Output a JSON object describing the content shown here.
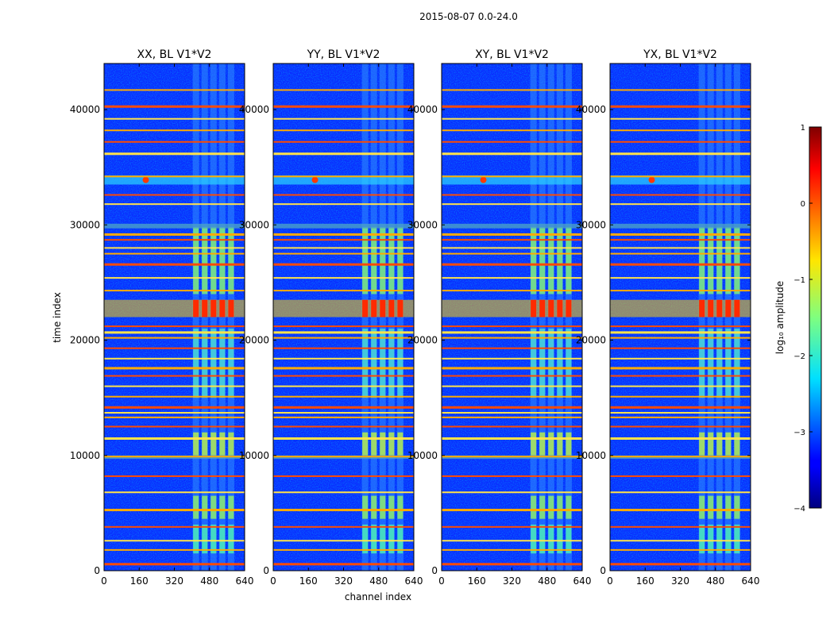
{
  "chart_data": {
    "type": "heatmap",
    "suptitle": "2015-08-07 0.0-24.0",
    "xlabel": "channel index",
    "ylabel": "time index",
    "xlim": [
      0,
      640
    ],
    "ylim": [
      0,
      44000
    ],
    "xticks": [
      0,
      160,
      320,
      480,
      640
    ],
    "yticks": [
      0,
      10000,
      20000,
      30000,
      40000
    ],
    "panels": [
      {
        "title": "XX, BL V1*V2"
      },
      {
        "title": "YY, BL V1*V2"
      },
      {
        "title": "XY, BL V1*V2"
      },
      {
        "title": "YX, BL V1*V2"
      }
    ],
    "colorbar": {
      "label": "log₁₀ amplitude",
      "min": -4,
      "max": 1,
      "ticks": [
        1,
        0,
        -1,
        -2,
        -3,
        -4
      ],
      "colormap": "jet"
    },
    "features": {
      "signal_channel_range": [
        400,
        600
      ],
      "hot_time_range": [
        22000,
        23500
      ],
      "rfi_time_rows": [
        600,
        1800,
        2600,
        3800,
        5300,
        6800,
        8200,
        9900,
        11500,
        12500,
        13300,
        13700,
        14200,
        15100,
        16000,
        16900,
        17600,
        18400,
        19300,
        20200,
        20700,
        21200,
        24300,
        25400,
        26600,
        27500,
        28000,
        28700,
        29200,
        31800,
        32600,
        34200,
        36200,
        37200,
        38200,
        39200,
        40300,
        41700
      ]
    }
  }
}
